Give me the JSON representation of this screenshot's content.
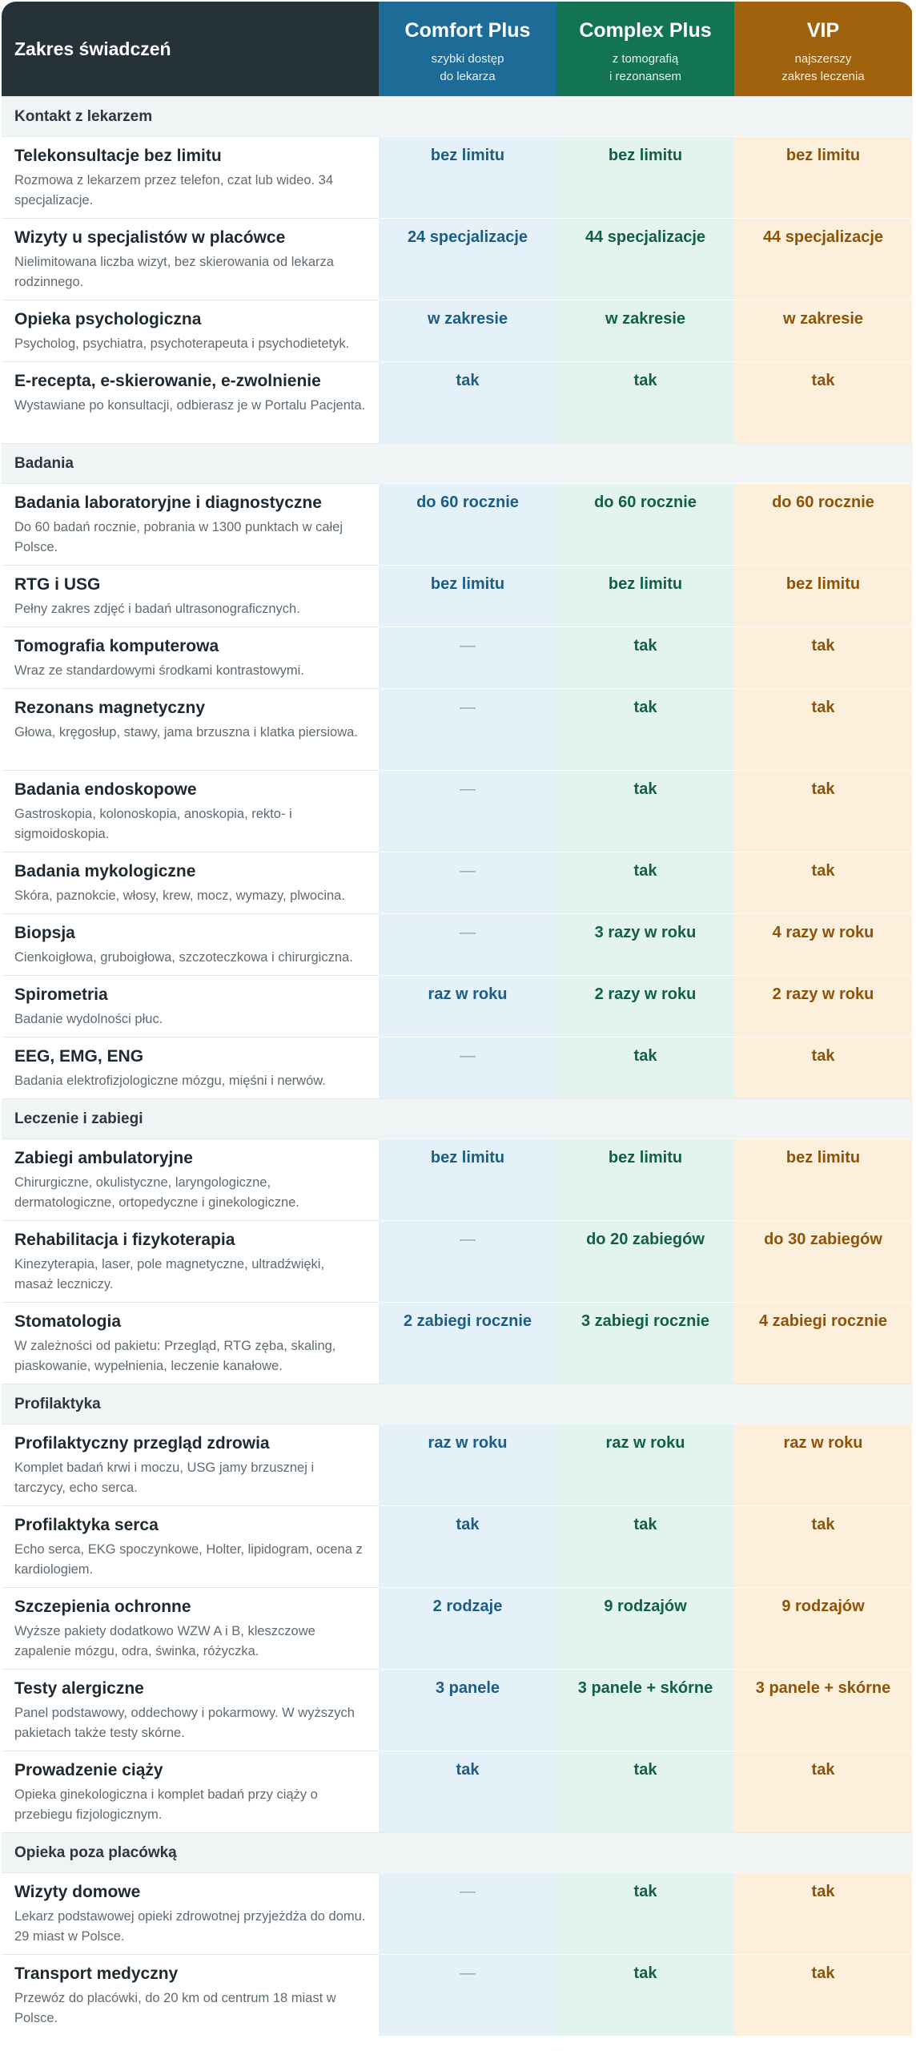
{
  "header": {
    "label": "Zakres świadczeń",
    "plans": [
      {
        "name": "Comfort Plus",
        "sub1": "szybki dostęp",
        "sub2": "do lekarza",
        "color": "#1d6c98"
      },
      {
        "name": "Complex Plus",
        "sub1": "z tomografią",
        "sub2": "i rezonansem",
        "color": "#137355"
      },
      {
        "name": "VIP",
        "sub1": "najszerszy",
        "sub2": "zakres leczenia",
        "color": "#a0620c"
      }
    ]
  },
  "sections": {
    "s0": {
      "label": "Kontakt z lekarzem"
    },
    "s1": {
      "label": "Badania"
    },
    "s2": {
      "label": "Leczenie i zabiegi"
    },
    "s3": {
      "label": "Profilaktyka"
    },
    "s4": {
      "label": "Opieka poza placówką"
    }
  },
  "rows": {
    "r0": {
      "title": "Telekonsultacje bez limitu",
      "desc": "Rozmowa z lekarzem przez telefon, czat lub wideo. 34 specjalizacje.",
      "comfort": "bez limitu",
      "complex": "bez limitu",
      "vip": "bez limitu"
    },
    "r1": {
      "title": "Wizyty u specjalistów w placówce",
      "desc": "Nielimitowana liczba wizyt, bez skierowania od lekarza rodzinnego.",
      "comfort": "24 specjalizacje",
      "complex": "44 specjalizacje",
      "vip": "44 specjalizacje"
    },
    "r2": {
      "title": "Opieka psychologiczna",
      "desc": "Psycholog, psychiatra, psychoterapeuta i psychodietetyk.",
      "comfort": "w zakresie",
      "complex": "w zakresie",
      "vip": "w zakresie"
    },
    "r3": {
      "title": "E-recepta, e-skierowanie, e-zwolnienie",
      "desc": "Wystawiane po konsultacji, odbierasz je w Portalu Pacjenta.",
      "comfort": "tak",
      "complex": "tak",
      "vip": "tak"
    },
    "r4": {
      "title": "Badania laboratoryjne i diagnostyczne",
      "desc": "Do 60 badań rocznie, pobrania w 1300 punktach w całej Polsce.",
      "comfort": "do 60 rocznie",
      "complex": "do 60 rocznie",
      "vip": "do 60 rocznie"
    },
    "r5": {
      "title": "RTG i USG",
      "desc": "Pełny zakres zdjęć i badań ultrasonograficznych.",
      "comfort": "bez limitu",
      "complex": "bez limitu",
      "vip": "bez limitu"
    },
    "r6": {
      "title": "Tomografia komputerowa",
      "desc": "Wraz ze standardowymi środkami kontrastowymi.",
      "comfort": "—",
      "complex": "tak",
      "vip": "tak"
    },
    "r7": {
      "title": "Rezonans magnetyczny",
      "desc": "Głowa, kręgosłup, stawy, jama brzuszna i klatka piersiowa.",
      "comfort": "—",
      "complex": "tak",
      "vip": "tak"
    },
    "r8": {
      "title": "Badania endoskopowe",
      "desc": "Gastroskopia, kolonoskopia, anoskopia, rekto- i sigmoidoskopia.",
      "comfort": "—",
      "complex": "tak",
      "vip": "tak"
    },
    "r9": {
      "title": "Badania mykologiczne",
      "desc": "Skóra, paznokcie, włosy, krew, mocz, wymazy, plwocina.",
      "comfort": "—",
      "complex": "tak",
      "vip": "tak"
    },
    "r10": {
      "title": "Biopsja",
      "desc": "Cienkoigłowa, gruboigłowa, szczoteczkowa i chirurgiczna.",
      "comfort": "—",
      "complex": "3 razy w roku",
      "vip": "4 razy w roku"
    },
    "r11": {
      "title": "Spirometria",
      "desc": "Badanie wydolności płuc.",
      "comfort": "raz w roku",
      "complex": "2 razy w roku",
      "vip": "2 razy w roku"
    },
    "r12": {
      "title": "EEG, EMG, ENG",
      "desc": "Badania elektrofizjologiczne mózgu, mięśni i nerwów.",
      "comfort": "—",
      "complex": "tak",
      "vip": "tak"
    },
    "r13": {
      "title": "Zabiegi ambulatoryjne",
      "desc": "Chirurgiczne, okulistyczne, laryngologiczne, dermatologiczne, ortopedyczne i ginekologiczne.",
      "comfort": "bez limitu",
      "complex": "bez limitu",
      "vip": "bez limitu"
    },
    "r14": {
      "title": "Rehabilitacja i fizykoterapia",
      "desc": "Kinezyterapia, laser, pole magnetyczne, ultradźwięki, masaż leczniczy.",
      "comfort": "—",
      "complex": "do 20 zabiegów",
      "vip": "do 30 zabiegów"
    },
    "r15": {
      "title": "Stomatologia",
      "desc": "W zależności od pakietu: Przegląd, RTG zęba, skaling, piaskowanie, wypełnienia, leczenie kanałowe.",
      "comfort": "2 zabiegi rocznie",
      "complex": "3 zabiegi rocznie",
      "vip": "4 zabiegi rocznie"
    },
    "r16": {
      "title": "Profilaktyczny przegląd zdrowia",
      "desc": "Komplet badań krwi i moczu, USG jamy brzusznej i tarczycy, echo serca.",
      "comfort": "raz w roku",
      "complex": "raz w roku",
      "vip": "raz w roku"
    },
    "r17": {
      "title": "Profilaktyka serca",
      "desc": "Echo serca, EKG spoczynkowe, Holter, lipidogram, ocena z kardiologiem.",
      "comfort": "tak",
      "complex": "tak",
      "vip": "tak"
    },
    "r18": {
      "title": "Szczepienia ochronne",
      "desc": "Wyższe pakiety dodatkowo WZW A i B, kleszczowe zapalenie mózgu, odra, świnka, różyczka.",
      "comfort": "2 rodzaje",
      "complex": "9 rodzajów",
      "vip": "9 rodzajów"
    },
    "r19": {
      "title": "Testy alergiczne",
      "desc": "Panel podstawowy, oddechowy i pokarmowy. W wyższych pakietach także testy skórne.",
      "comfort": "3 panele",
      "complex": "3 panele + skórne",
      "vip": "3 panele + skórne"
    },
    "r20": {
      "title": "Prowadzenie ciąży",
      "desc": "Opieka ginekologiczna i komplet badań przy ciąży o przebiegu fizjologicznym.",
      "comfort": "tak",
      "complex": "tak",
      "vip": "tak"
    },
    "r21": {
      "title": "Wizyty domowe",
      "desc": "Lekarz podstawowej opieki zdrowotnej przyjeżdża do domu. 29 miast w Polsce.",
      "comfort": "—",
      "complex": "tak",
      "vip": "tak"
    },
    "r22": {
      "title": "Transport medyczny",
      "desc": "Przewóz do placówki, do 20 km od centrum 18 miast w Polsce.",
      "comfort": "—",
      "complex": "tak",
      "vip": "tak"
    }
  }
}
